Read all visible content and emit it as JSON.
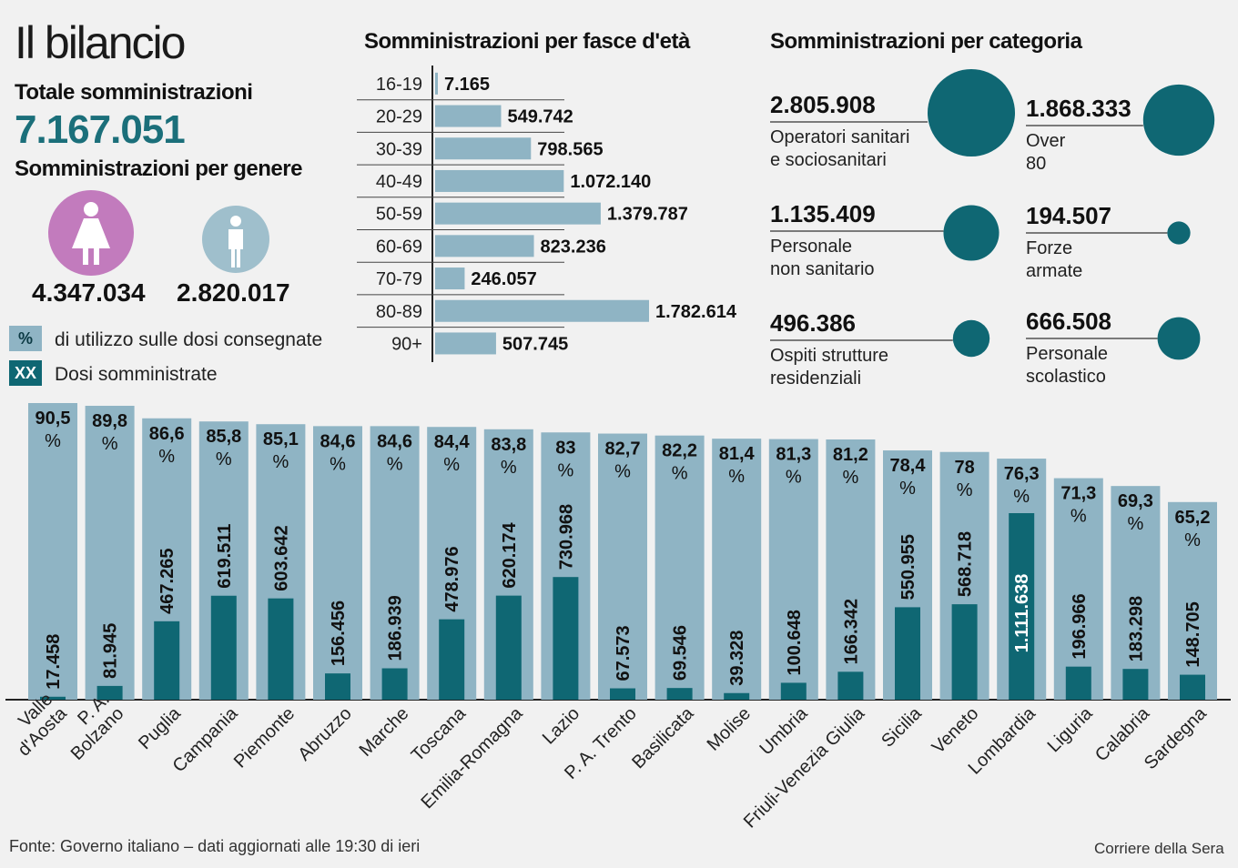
{
  "header": {
    "title": "Il bilancio",
    "total_label": "Totale somministrazioni",
    "total_value": "7.167.051",
    "gender_label": "Somministrazioni per genere"
  },
  "gender": {
    "female": {
      "value": 4347034,
      "label": "4.347.034",
      "icon": "female-icon",
      "color": "#c27bbd"
    },
    "male": {
      "value": 2820017,
      "label": "2.820.017",
      "icon": "male-icon",
      "color": "#9fbfcc"
    }
  },
  "legend": {
    "pct_key": "%",
    "pct_text": "di utilizzo sulle dosi consegnate",
    "doses_key": "XX",
    "doses_text": "Dosi somministrate"
  },
  "colors": {
    "light": "#8fb4c4",
    "dark": "#0f6773",
    "accent": "#1b6f7a"
  },
  "age_chart": {
    "type": "bar",
    "title": "Somministrazioni per fasce d'età",
    "categories": [
      "16-19",
      "20-29",
      "30-39",
      "40-49",
      "50-59",
      "60-69",
      "70-79",
      "80-89",
      "90+"
    ],
    "values": [
      7165,
      549742,
      798565,
      1072140,
      1379787,
      823236,
      246057,
      1782614,
      507745
    ],
    "labels": [
      "7.165",
      "549.742",
      "798.565",
      "1.072.140",
      "1.379.787",
      "823.236",
      "246.057",
      "1.782.614",
      "507.745"
    ]
  },
  "categories_panel": {
    "title": "Somministrazioni per categoria",
    "items": [
      {
        "value": 2805908,
        "label": "2.805.908",
        "name": "Operatori sanitari\ne sociosanitari"
      },
      {
        "value": 1868333,
        "label": "1.868.333",
        "name": "Over\n80"
      },
      {
        "value": 1135409,
        "label": "1.135.409",
        "name": "Personale\nnon sanitario"
      },
      {
        "value": 194507,
        "label": "194.507",
        "name": "Forze\narmate"
      },
      {
        "value": 496386,
        "label": "496.386",
        "name": "Ospiti strutture\nresidenziali"
      },
      {
        "value": 666508,
        "label": "666.508",
        "name": "Personale\nscolastico"
      }
    ]
  },
  "chart_data": {
    "type": "bar",
    "categories": [
      "Valle\nd'Aosta",
      "P. A.\nBolzano",
      "Puglia",
      "Campania",
      "Piemonte",
      "Abruzzo",
      "Marche",
      "Toscana",
      "Emilia-Romagna",
      "Lazio",
      "P. A. Trento",
      "Basilicata",
      "Molise",
      "Umbria",
      "Friuli-Venezia Giulia",
      "Sicilia",
      "Veneto",
      "Lombardia",
      "Liguria",
      "Calabria",
      "Sardegna"
    ],
    "series": [
      {
        "values": [
          90.5,
          89.8,
          86.6,
          85.8,
          85.1,
          84.6,
          84.6,
          84.4,
          83.8,
          83,
          82.7,
          82.2,
          81.4,
          81.3,
          81.2,
          78.4,
          78,
          76.3,
          71.3,
          69.3,
          65.2
        ],
        "labels": [
          "90,5",
          "89,8",
          "86,6",
          "85,8",
          "85,1",
          "84,6",
          "84,6",
          "84,4",
          "83,8",
          "83",
          "82,7",
          "82,2",
          "81,4",
          "81,3",
          "81,2",
          "78,4",
          "78",
          "76,3",
          "71,3",
          "69,3",
          "65,2"
        ]
      },
      {
        "values": [
          17458,
          81945,
          467265,
          619511,
          603642,
          156456,
          186939,
          478976,
          620174,
          730968,
          67573,
          69546,
          39328,
          100648,
          166342,
          550955,
          568718,
          1111638,
          196966,
          183298,
          148705
        ],
        "labels": [
          "17.458",
          "81.945",
          "467.265",
          "619.511",
          "603.642",
          "156.456",
          "186.939",
          "478.976",
          "620.174",
          "730.968",
          "67.573",
          "69.546",
          "39.328",
          "100.648",
          "166.342",
          "550.955",
          "568.718",
          "1.111.638",
          "196.966",
          "183.298",
          "148.705"
        ]
      }
    ],
    "pct_unit": "%"
  },
  "footer": {
    "source": "Fonte: Governo italiano – dati aggiornati alle 19:30 di ieri",
    "credit": "Corriere della Sera"
  }
}
